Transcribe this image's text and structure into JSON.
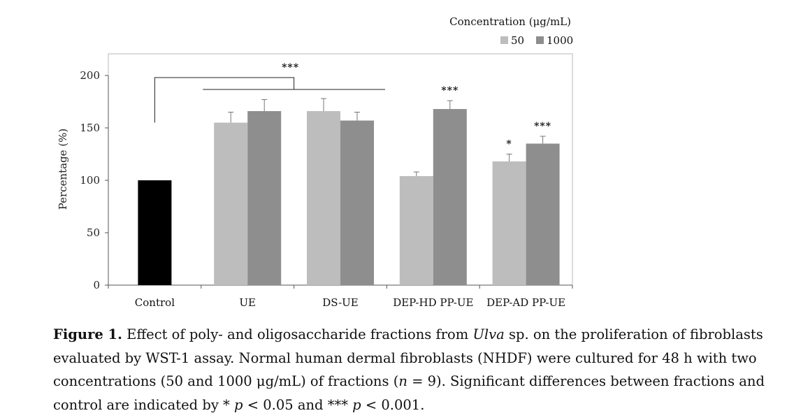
{
  "chart_data": {
    "type": "bar",
    "legend_title": "Concentration (μg/mL)",
    "legend_placement": "top-right",
    "ylabel": "Percentage (%)",
    "xlabel": "",
    "ylim": [
      0,
      200
    ],
    "yticks": [
      0,
      50,
      100,
      150,
      200
    ],
    "grid": false,
    "categories": [
      "Control",
      "UE",
      "DS-UE",
      "DEP-HD PP-UE",
      "DEP-AD PP-UE"
    ],
    "control": {
      "value": 100,
      "color": "#000000"
    },
    "series": [
      {
        "name": "50",
        "color": "#bdbdbd",
        "values": [
          null,
          155,
          166,
          104,
          118
        ],
        "errors": [
          null,
          10,
          12,
          4,
          7
        ],
        "significance": [
          null,
          "",
          "",
          "",
          "*"
        ]
      },
      {
        "name": "1000",
        "color": "#8e8e8e",
        "values": [
          null,
          166,
          157,
          168,
          135
        ],
        "errors": [
          null,
          11,
          8,
          8,
          7
        ],
        "significance": [
          null,
          "",
          "",
          "***",
          "***"
        ]
      }
    ],
    "group_significance": {
      "label": "***",
      "from": "Control",
      "to": [
        "UE",
        "DS-UE"
      ]
    }
  },
  "caption": {
    "label": "Figure 1.",
    "text_1": " Effect of poly- and oligosaccharide fractions from ",
    "species": "Ulva",
    "text_2": " sp. on the proliferation of fibroblasts evaluated by WST-1 assay. Normal human dermal fibroblasts (NHDF) were cultured for 48 h with two concentrations (50 and 1000 μg/mL) of fractions (",
    "n_symbol": "n",
    "text_3": " = 9). Significant differences between fractions and control are indicated by * ",
    "p_symbol_1": "p",
    "text_4": " < 0.05 and *** ",
    "p_symbol_2": "p",
    "text_5": " < 0.001."
  }
}
